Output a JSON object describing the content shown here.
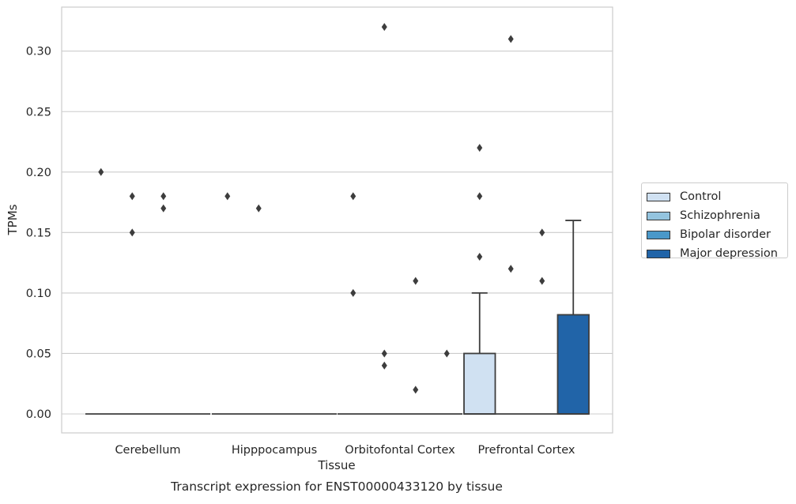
{
  "chart_data": {
    "type": "box",
    "xlabel": "Tissue",
    "ylabel": "TPMs",
    "caption": "Transcript expression for ENST00000433120 by tissue",
    "ylim": [
      -0.016,
      0.337
    ],
    "yticks": [
      "0.00",
      "0.05",
      "0.10",
      "0.15",
      "0.20",
      "0.25",
      "0.30"
    ],
    "categories": [
      "Cerebellum",
      "Hipppocampus",
      "Orbitofontal Cortex",
      "Prefrontal Cortex"
    ],
    "grid": true,
    "legend_position": "right",
    "series": [
      {
        "name": "Control",
        "color": "#d0e1f2",
        "boxes": [
          {
            "q1": 0,
            "median": 0,
            "q3": 0,
            "whisker_low": 0,
            "whisker_high": 0,
            "outliers": [
              0.2
            ]
          },
          {
            "q1": 0,
            "median": 0,
            "q3": 0,
            "whisker_low": 0,
            "whisker_high": 0,
            "outliers": [
              0.18
            ]
          },
          {
            "q1": 0,
            "median": 0,
            "q3": 0,
            "whisker_low": 0,
            "whisker_high": 0,
            "outliers": [
              0.18,
              0.1
            ]
          },
          {
            "q1": 0,
            "median": 0,
            "q3": 0.05,
            "whisker_low": 0,
            "whisker_high": 0.1,
            "outliers": [
              0.22,
              0.18,
              0.13
            ]
          }
        ]
      },
      {
        "name": "Schizophrenia",
        "color": "#94c4df",
        "boxes": [
          {
            "q1": 0,
            "median": 0,
            "q3": 0,
            "whisker_low": 0,
            "whisker_high": 0,
            "outliers": [
              0.18,
              0.15
            ]
          },
          {
            "q1": 0,
            "median": 0,
            "q3": 0,
            "whisker_low": 0,
            "whisker_high": 0,
            "outliers": [
              0.17
            ]
          },
          {
            "q1": 0,
            "median": 0,
            "q3": 0,
            "whisker_low": 0,
            "whisker_high": 0,
            "outliers": [
              0.32,
              0.05,
              0.04
            ]
          },
          {
            "q1": 0,
            "median": 0,
            "q3": 0,
            "whisker_low": 0,
            "whisker_high": 0,
            "outliers": [
              0.31,
              0.12
            ]
          }
        ]
      },
      {
        "name": "Bipolar disorder",
        "color": "#4a98c9",
        "boxes": [
          {
            "q1": 0,
            "median": 0,
            "q3": 0,
            "whisker_low": 0,
            "whisker_high": 0,
            "outliers": [
              0.18,
              0.17
            ]
          },
          {
            "q1": 0,
            "median": 0,
            "q3": 0,
            "whisker_low": 0,
            "whisker_high": 0,
            "outliers": []
          },
          {
            "q1": 0,
            "median": 0,
            "q3": 0,
            "whisker_low": 0,
            "whisker_high": 0,
            "outliers": [
              0.11,
              0.02
            ]
          },
          {
            "q1": 0,
            "median": 0,
            "q3": 0,
            "whisker_low": 0,
            "whisker_high": 0,
            "outliers": [
              0.15,
              0.11
            ]
          }
        ]
      },
      {
        "name": "Major depression",
        "color": "#2164a8",
        "boxes": [
          {
            "q1": 0,
            "median": 0,
            "q3": 0,
            "whisker_low": 0,
            "whisker_high": 0,
            "outliers": []
          },
          {
            "q1": 0,
            "median": 0,
            "q3": 0,
            "whisker_low": 0,
            "whisker_high": 0,
            "outliers": []
          },
          {
            "q1": 0,
            "median": 0,
            "q3": 0,
            "whisker_low": 0,
            "whisker_high": 0,
            "outliers": [
              0.05
            ]
          },
          {
            "q1": 0,
            "median": 0,
            "q3": 0.082,
            "whisker_low": 0,
            "whisker_high": 0.16,
            "outliers": []
          }
        ]
      }
    ]
  }
}
